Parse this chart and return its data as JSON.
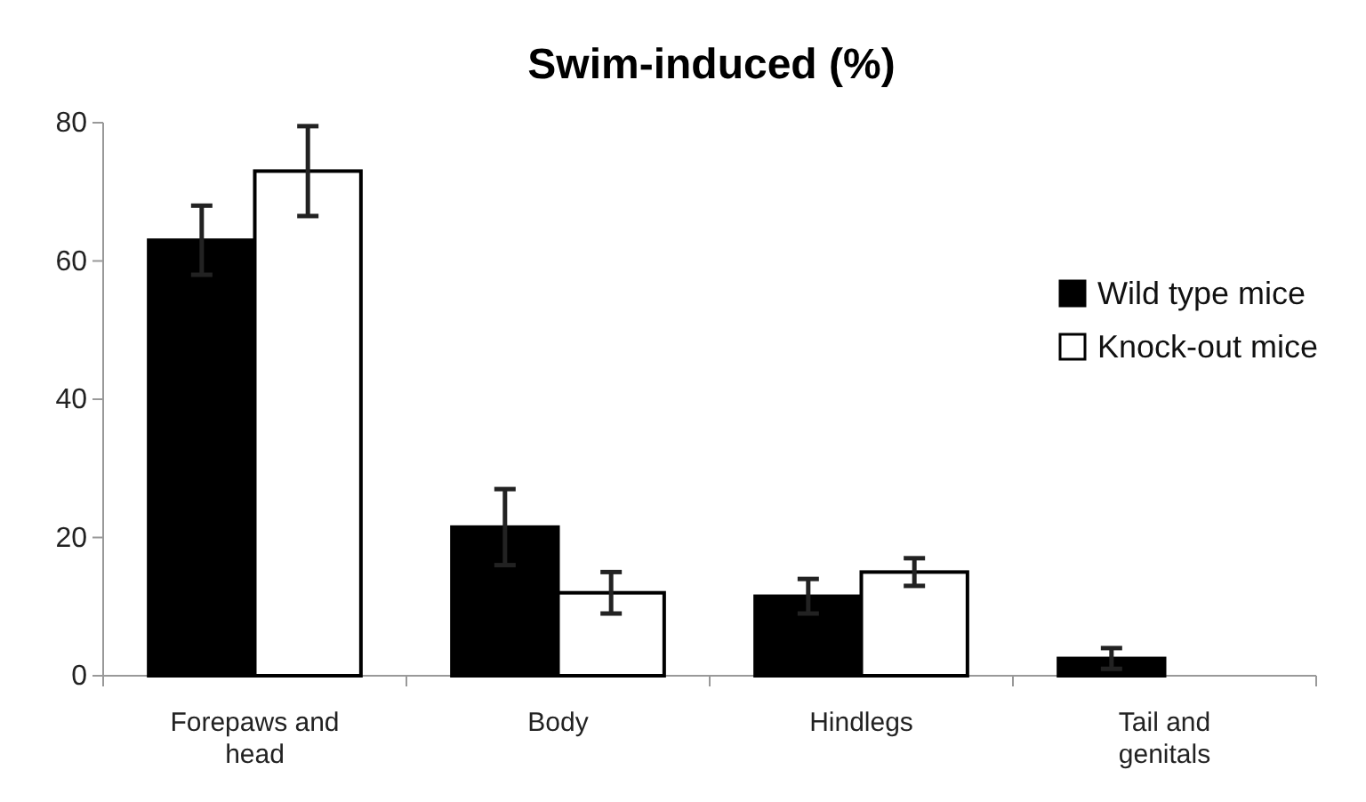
{
  "chart_data": {
    "type": "bar",
    "title": "Swim-induced (%)",
    "categories": [
      "Forepaws and head",
      "Body",
      "Hindlegs",
      "Tail and genitals"
    ],
    "series": [
      {
        "name": "Wild type mice",
        "color": "#000000",
        "values": [
          63,
          21.5,
          11.5,
          2.5
        ],
        "errors": [
          5,
          5.5,
          2.5,
          1.5
        ]
      },
      {
        "name": "Knock-out mice",
        "color": "#ffffff",
        "values": [
          73,
          12,
          15,
          0
        ],
        "errors": [
          6.5,
          3,
          2,
          null
        ]
      }
    ],
    "ylim": [
      0,
      80
    ],
    "yticks": [
      0,
      20,
      40,
      60,
      80
    ],
    "grid": false,
    "legend": "top right"
  }
}
